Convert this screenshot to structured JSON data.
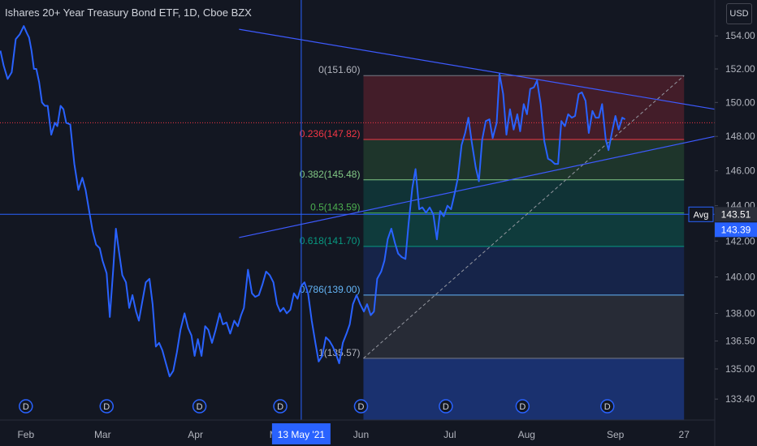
{
  "header": {
    "title": "Ishares 20+ Year Treasury Bond ETF, 1D, Cboe BZX",
    "currency": "USD"
  },
  "colors": {
    "background": "#131722",
    "price_line": "#2962ff",
    "trend_line": "#3d5afe",
    "crosshair": "#2962ff",
    "dividend": "#2962ff"
  },
  "crosshair": {
    "date_label": "13 May '21",
    "price_label": "143.39"
  },
  "avg_label": {
    "text": "Avg",
    "value": "143.51"
  },
  "dividend_marker": "D",
  "chart_data": {
    "type": "line",
    "title": "Ishares 20+ Year Treasury Bond ETF, 1D, Cboe BZX",
    "xlabel": "",
    "ylabel": "",
    "y_scale": "log",
    "ylim": [
      132.3,
      156.2
    ],
    "xlim": [
      -3.4,
      173.6
    ],
    "x_ticks": [
      {
        "label": "Feb",
        "x": 3
      },
      {
        "label": "Mar",
        "x": 22
      },
      {
        "label": "Apr",
        "x": 45
      },
      {
        "label": "Ma",
        "x": 65
      },
      {
        "label": "Jun",
        "x": 86
      },
      {
        "label": "Jul",
        "x": 108
      },
      {
        "label": "Aug",
        "x": 127
      },
      {
        "label": "Sep",
        "x": 149
      },
      {
        "label": "27",
        "x": 166
      }
    ],
    "y_ticks": [
      {
        "label": "154.00",
        "v": 154.0
      },
      {
        "label": "152.00",
        "v": 152.0
      },
      {
        "label": "150.00",
        "v": 150.0
      },
      {
        "label": "148.00",
        "v": 148.0
      },
      {
        "label": "146.00",
        "v": 146.0
      },
      {
        "label": "144.00",
        "v": 144.0
      },
      {
        "label": "142.00",
        "v": 142.0
      },
      {
        "label": "140.00",
        "v": 140.0
      },
      {
        "label": "138.00",
        "v": 138.0
      },
      {
        "label": "136.50",
        "v": 136.5
      },
      {
        "label": "135.00",
        "v": 135.0
      },
      {
        "label": "133.40",
        "v": 133.4
      }
    ],
    "series": [
      {
        "values": [
          [
            -3.3,
            153.1
          ],
          [
            -2.5,
            152.2
          ],
          [
            -1.5,
            151.4
          ],
          [
            -0.5,
            151.8
          ],
          [
            0.5,
            153.8
          ],
          [
            1.5,
            154.1
          ],
          [
            2.5,
            154.6
          ],
          [
            3.2,
            154.2
          ],
          [
            3.8,
            153.9
          ],
          [
            4.4,
            153.1
          ],
          [
            5.0,
            152.0
          ],
          [
            5.6,
            152.0
          ],
          [
            6.3,
            151.2
          ],
          [
            7.0,
            150.0
          ],
          [
            7.7,
            149.8
          ],
          [
            8.4,
            149.8
          ],
          [
            9.3,
            148.1
          ],
          [
            10.2,
            148.8
          ],
          [
            10.8,
            148.6
          ],
          [
            11.6,
            149.8
          ],
          [
            12.3,
            149.6
          ],
          [
            13.0,
            148.8
          ],
          [
            14.0,
            148.7
          ],
          [
            15.0,
            146.4
          ],
          [
            16.0,
            144.9
          ],
          [
            17.0,
            145.6
          ],
          [
            17.8,
            144.9
          ],
          [
            18.6,
            143.8
          ],
          [
            19.5,
            142.6
          ],
          [
            20.4,
            141.8
          ],
          [
            21.3,
            141.6
          ],
          [
            22.0,
            140.9
          ],
          [
            23.0,
            140.2
          ],
          [
            23.8,
            137.8
          ],
          [
            24.6,
            140.3
          ],
          [
            25.3,
            142.7
          ],
          [
            26.0,
            141.5
          ],
          [
            26.9,
            140.1
          ],
          [
            27.8,
            139.7
          ],
          [
            28.6,
            138.3
          ],
          [
            29.4,
            139.0
          ],
          [
            30.3,
            138.1
          ],
          [
            31.0,
            137.6
          ],
          [
            31.8,
            138.6
          ],
          [
            32.7,
            139.7
          ],
          [
            33.6,
            139.9
          ],
          [
            34.4,
            138.5
          ],
          [
            35.2,
            136.2
          ],
          [
            36.0,
            136.4
          ],
          [
            36.8,
            136.0
          ],
          [
            37.7,
            135.3
          ],
          [
            38.6,
            134.6
          ],
          [
            39.5,
            134.9
          ],
          [
            40.4,
            135.9
          ],
          [
            41.3,
            137.1
          ],
          [
            42.3,
            138.0
          ],
          [
            43.2,
            137.2
          ],
          [
            44.0,
            136.8
          ],
          [
            44.8,
            135.7
          ],
          [
            45.6,
            136.6
          ],
          [
            46.5,
            135.7
          ],
          [
            47.4,
            137.3
          ],
          [
            48.2,
            137.1
          ],
          [
            49.1,
            136.4
          ],
          [
            50.0,
            137.1
          ],
          [
            51.0,
            138.0
          ],
          [
            51.8,
            137.4
          ],
          [
            52.7,
            137.5
          ],
          [
            53.6,
            136.9
          ],
          [
            54.6,
            137.6
          ],
          [
            55.5,
            137.3
          ],
          [
            56.3,
            137.9
          ],
          [
            57.0,
            138.3
          ],
          [
            58.0,
            140.4
          ],
          [
            59.0,
            139.1
          ],
          [
            59.8,
            138.9
          ],
          [
            60.7,
            139.0
          ],
          [
            61.6,
            139.6
          ],
          [
            62.5,
            140.3
          ],
          [
            63.4,
            140.1
          ],
          [
            64.3,
            139.7
          ],
          [
            65.2,
            138.5
          ],
          [
            66.0,
            138.1
          ],
          [
            66.8,
            138.3
          ],
          [
            67.6,
            138.0
          ],
          [
            68.5,
            138.2
          ],
          [
            69.4,
            139.1
          ],
          [
            70.3,
            138.8
          ],
          [
            71.2,
            139.5
          ],
          [
            72.0,
            139.7
          ],
          [
            72.9,
            139.1
          ],
          [
            73.8,
            137.6
          ],
          [
            74.7,
            136.4
          ],
          [
            75.5,
            135.4
          ],
          [
            76.4,
            135.7
          ],
          [
            77.3,
            136.7
          ],
          [
            78.2,
            136.5
          ],
          [
            79.0,
            136.2
          ],
          [
            79.8,
            135.8
          ],
          [
            80.6,
            135.3
          ],
          [
            81.5,
            136.4
          ],
          [
            82.4,
            136.9
          ],
          [
            83.2,
            137.4
          ],
          [
            84.0,
            138.5
          ],
          [
            84.9,
            139.0
          ],
          [
            85.8,
            138.5
          ],
          [
            86.7,
            138.1
          ],
          [
            87.5,
            138.5
          ],
          [
            88.4,
            137.9
          ],
          [
            89.2,
            138.1
          ],
          [
            90.0,
            139.9
          ],
          [
            91.0,
            140.3
          ],
          [
            91.8,
            140.9
          ],
          [
            92.6,
            142.1
          ],
          [
            93.5,
            142.7
          ],
          [
            94.4,
            141.9
          ],
          [
            95.2,
            141.3
          ],
          [
            96.1,
            141.1
          ],
          [
            97.0,
            141.0
          ],
          [
            97.8,
            143.0
          ],
          [
            98.7,
            145.0
          ],
          [
            99.5,
            146.1
          ],
          [
            100.4,
            143.8
          ],
          [
            101.2,
            143.9
          ],
          [
            102.1,
            143.6
          ],
          [
            103.0,
            143.9
          ],
          [
            103.9,
            143.5
          ],
          [
            104.8,
            142.1
          ],
          [
            105.6,
            143.7
          ],
          [
            106.5,
            143.4
          ],
          [
            107.4,
            144.0
          ],
          [
            108.3,
            143.8
          ],
          [
            109.1,
            144.6
          ],
          [
            110.0,
            145.6
          ],
          [
            110.9,
            147.5
          ],
          [
            111.8,
            148.2
          ],
          [
            112.6,
            149.1
          ],
          [
            113.4,
            147.7
          ],
          [
            114.4,
            146.2
          ],
          [
            115.2,
            145.4
          ],
          [
            116.0,
            147.8
          ],
          [
            116.9,
            148.9
          ],
          [
            117.8,
            149.0
          ],
          [
            118.6,
            147.9
          ],
          [
            119.6,
            148.8
          ],
          [
            120.3,
            151.7
          ],
          [
            121.2,
            150.5
          ],
          [
            122.0,
            148.1
          ],
          [
            122.9,
            149.6
          ],
          [
            123.8,
            148.4
          ],
          [
            124.7,
            149.3
          ],
          [
            125.4,
            148.3
          ],
          [
            126.3,
            149.9
          ],
          [
            127.1,
            149.3
          ],
          [
            127.9,
            150.8
          ],
          [
            128.8,
            150.9
          ],
          [
            129.6,
            151.3
          ],
          [
            130.5,
            149.9
          ],
          [
            131.4,
            147.7
          ],
          [
            132.3,
            146.7
          ],
          [
            133.1,
            146.6
          ],
          [
            134.0,
            146.4
          ],
          [
            134.8,
            146.4
          ],
          [
            135.6,
            148.9
          ],
          [
            136.5,
            148.6
          ],
          [
            137.3,
            149.3
          ],
          [
            138.2,
            149.1
          ],
          [
            139.0,
            149.2
          ],
          [
            139.9,
            150.5
          ],
          [
            140.7,
            150.6
          ],
          [
            141.6,
            150.1
          ],
          [
            142.4,
            148.2
          ],
          [
            143.3,
            149.5
          ],
          [
            144.1,
            149.1
          ],
          [
            144.9,
            149.1
          ],
          [
            145.7,
            149.9
          ],
          [
            146.6,
            147.8
          ],
          [
            147.3,
            147.2
          ],
          [
            148.2,
            148.3
          ],
          [
            149.0,
            149.2
          ],
          [
            149.8,
            148.4
          ],
          [
            150.7,
            149.1
          ],
          [
            151.4,
            149.0
          ]
        ]
      }
    ],
    "fibonacci": [
      {
        "ratio": "0",
        "price": "151.60",
        "label": "0(151.60)"
      },
      {
        "ratio": "0.236",
        "price": "147.82",
        "label": "0.236(147.82)"
      },
      {
        "ratio": "0.382",
        "price": "145.48",
        "label": "0.382(145.48)"
      },
      {
        "ratio": "0.5",
        "price": "143.59",
        "label": "0.5(143.59)"
      },
      {
        "ratio": "0.618",
        "price": "141.70",
        "label": "0.618(141.70)"
      },
      {
        "ratio": "0.786",
        "price": "139.00",
        "label": "0.786(139.00)"
      },
      {
        "ratio": "1",
        "price": "135.57",
        "label": "1(135.57)"
      }
    ],
    "fib_range": {
      "x_start": 86.6,
      "x_end": 166
    },
    "trend_lines": [
      {
        "from": [
          55.8,
          154.4
        ],
        "to": [
          173.6,
          149.6
        ]
      },
      {
        "from": [
          55.8,
          142.2
        ],
        "to": [
          173.6,
          148.0
        ]
      }
    ],
    "diagonal": {
      "from": [
        86.6,
        135.57
      ],
      "to": [
        166,
        151.6
      ]
    },
    "dividend_dates": [
      3,
      23,
      46,
      66,
      86,
      107,
      126,
      147
    ],
    "reference_lines": [
      {
        "v": 148.8,
        "style": "dotted",
        "color": "#f23645"
      },
      {
        "v": 143.51,
        "style": "solid",
        "color": "#2962ff"
      }
    ],
    "crosshair_x": 71.2
  }
}
